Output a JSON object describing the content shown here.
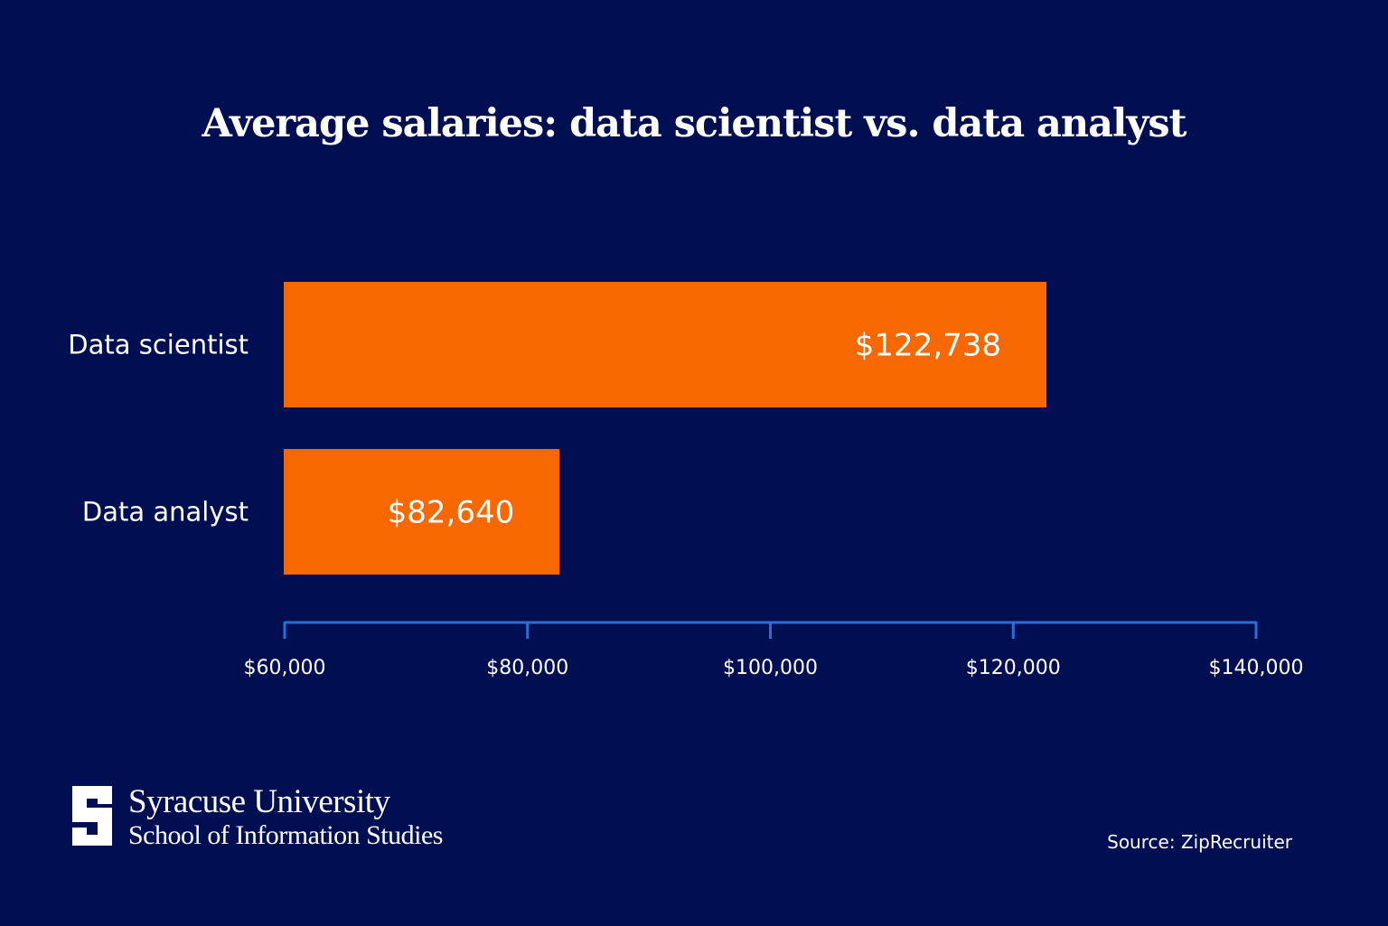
{
  "chart_data": {
    "type": "bar",
    "orientation": "horizontal",
    "title": "Average salaries: data scientist vs. data analyst",
    "categories": [
      "Data scientist",
      "Data analyst"
    ],
    "values": [
      122738,
      82640
    ],
    "data_labels": [
      "$122,738",
      "$82,640"
    ],
    "xlim": [
      60000,
      140000
    ],
    "x_ticks": [
      60000,
      80000,
      100000,
      120000,
      140000
    ],
    "x_tick_labels": [
      "$60,000",
      "$80,000",
      "$100,000",
      "$120,000",
      "$140,000"
    ],
    "xlabel": "",
    "ylabel": "",
    "grid": false,
    "colors": {
      "background": "#000f52",
      "bar": "#f76900",
      "axis": "#2b6fd6",
      "text": "#ffffff"
    }
  },
  "branding": {
    "logo_letter": "S",
    "line1": "Syracuse University",
    "line2": "School of Information Studies"
  },
  "source": "Source: ZipRecruiter"
}
